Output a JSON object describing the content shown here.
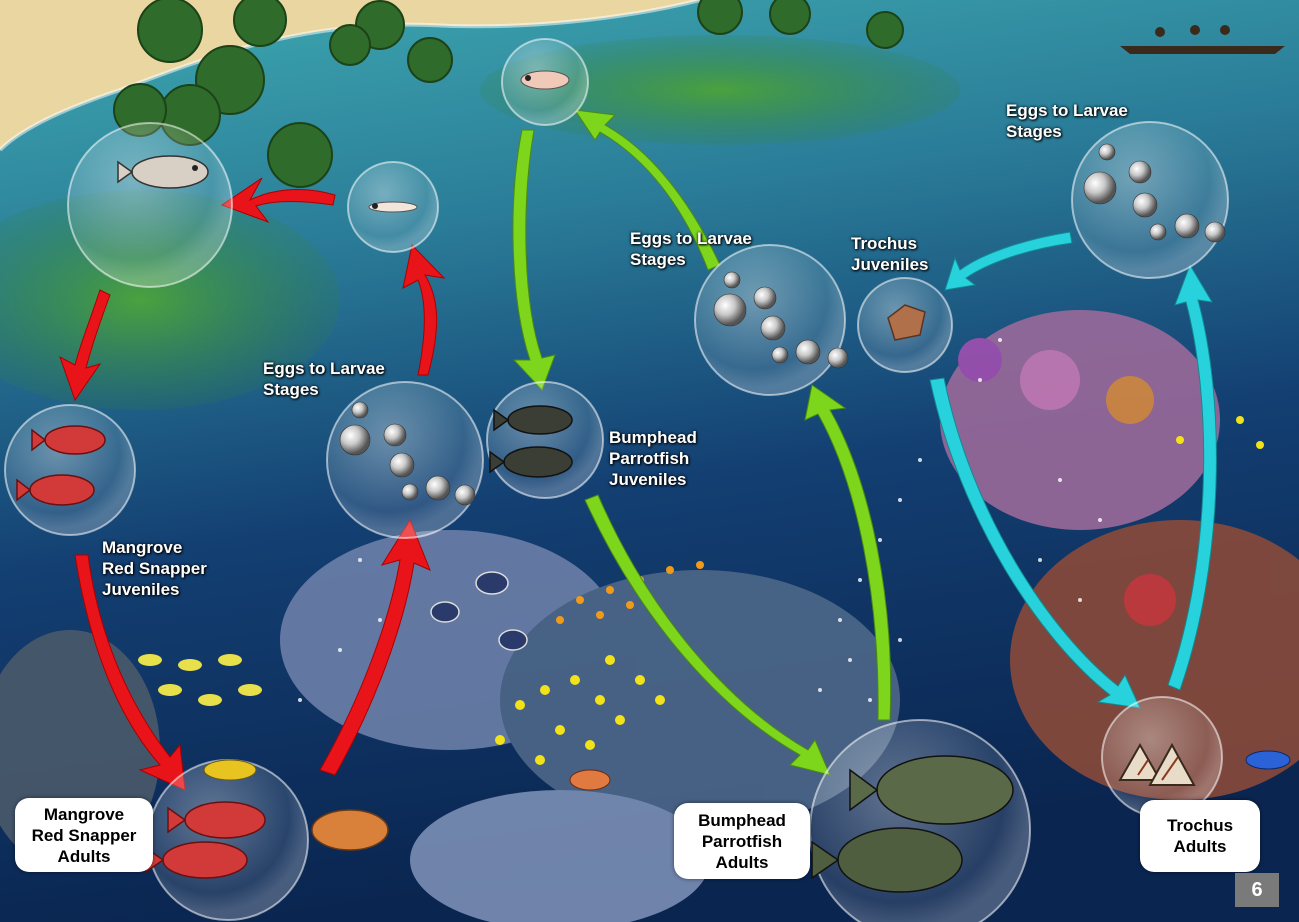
{
  "colors": {
    "snapper_arrow": "#e8141a",
    "parrotfish_arrow": "#7ed61c",
    "trochus_arrow": "#28d2dc",
    "water_light": "#2f8fa0",
    "water_deep": "#0c2a55",
    "sand": "#e9d6a0",
    "seagrass": "#3e8f3a"
  },
  "labels": {
    "snapper_juveniles": [
      "Mangrove",
      "Red Snapper",
      "Juveniles"
    ],
    "snapper_eggs": [
      "Eggs to Larvae",
      "Stages"
    ],
    "parrot_juveniles": [
      "Bumphead",
      "Parrotfish",
      "Juveniles"
    ],
    "parrot_eggs": [
      "Eggs to Larvae",
      "Stages"
    ],
    "trochus_juveniles": [
      "Trochus",
      "Juveniles"
    ],
    "trochus_eggs": [
      "Eggs to Larvae",
      "Stages"
    ]
  },
  "boxes": {
    "snapper_adults": [
      "Mangrove",
      "Red Snapper",
      "Adults"
    ],
    "parrot_adults": [
      "Bumphead",
      "Parrotfish",
      "Adults"
    ],
    "trochus_adults": [
      "Trochus",
      "Adults"
    ]
  },
  "page_number": "6",
  "stages": [
    {
      "name": "snapper-larva-circle",
      "icon": "larval-fish-icon"
    },
    {
      "name": "snapper-mangrove-juvenile-circle",
      "icon": "snapper-icon"
    },
    {
      "name": "snapper-juveniles-circle",
      "icon": "red-snapper-icon"
    },
    {
      "name": "snapper-adults-circle",
      "icon": "red-snapper-icon"
    },
    {
      "name": "snapper-eggs-circle",
      "icon": "egg-icon"
    },
    {
      "name": "parrot-larva-circle",
      "icon": "larval-fish-icon"
    },
    {
      "name": "parrot-juveniles-circle",
      "icon": "parrotfish-icon"
    },
    {
      "name": "parrot-adults-circle",
      "icon": "parrotfish-icon"
    },
    {
      "name": "parrot-eggs-circle",
      "icon": "egg-icon"
    },
    {
      "name": "trochus-eggs-circle",
      "icon": "egg-icon"
    },
    {
      "name": "trochus-juveniles-circle",
      "icon": "shell-icon"
    },
    {
      "name": "trochus-adults-circle",
      "icon": "trochus-shell-icon"
    }
  ]
}
